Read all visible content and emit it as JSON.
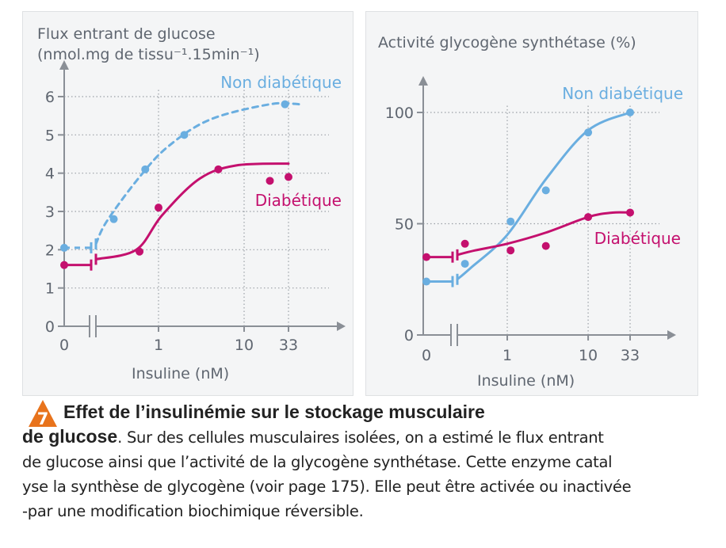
{
  "charts": [
    {
      "id": "left",
      "ylabel_line1": "Flux entrant de glucose",
      "ylabel_line2": "(nmol.mg de tissu⁻¹.15min⁻¹)",
      "xlabel": "Insuline (nM)",
      "x_ticks": [
        "0",
        "1",
        "10",
        "33"
      ],
      "y_ticks": [
        "0",
        "1",
        "2",
        "3",
        "4",
        "5",
        "6"
      ],
      "series_labels": [
        "Non diabétique",
        "Diabétique"
      ]
    },
    {
      "id": "right",
      "ylabel_line1": "Activité glycogène synthétase (%)",
      "xlabel": "Insuline (nM)",
      "x_ticks": [
        "0",
        "1",
        "10",
        "33"
      ],
      "y_ticks": [
        "0",
        "50",
        "100"
      ],
      "series_labels": [
        "Non diabétique",
        "Diabétique"
      ]
    }
  ],
  "chart_data": [
    {
      "type": "line",
      "xlabel": "Insuline (nM)",
      "ylabel": "Flux entrant de glucose (nmol.mg de tissu⁻¹.15min⁻¹)",
      "x_scale": "log (with break, 0 shown separately)",
      "ylim": [
        0,
        6
      ],
      "grid": true,
      "series": [
        {
          "name": "Non diabétique",
          "color": "#6aaee0",
          "style": "dashed",
          "points": [
            [
              0,
              2.05
            ],
            [
              0.3,
              2.8
            ],
            [
              0.7,
              4.1
            ],
            [
              2,
              5.0
            ],
            [
              30,
              5.8
            ]
          ]
        },
        {
          "name": "Diabétique",
          "color": "#c4106e",
          "style": "solid",
          "points": [
            [
              0,
              1.6
            ],
            [
              0.6,
              1.95
            ],
            [
              1,
              3.1
            ],
            [
              5,
              4.1
            ],
            [
              20,
              3.8
            ],
            [
              33,
              3.9
            ]
          ]
        }
      ]
    },
    {
      "type": "line",
      "xlabel": "Insuline (nM)",
      "ylabel": "Activité glycogène synthétase (%)",
      "x_scale": "log (with break, 0 shown separately)",
      "ylim": [
        0,
        100
      ],
      "grid": true,
      "series": [
        {
          "name": "Non diabétique",
          "color": "#6aaee0",
          "style": "solid",
          "points": [
            [
              0,
              24
            ],
            [
              0.3,
              32
            ],
            [
              1.1,
              51
            ],
            [
              3,
              65
            ],
            [
              10,
              91
            ],
            [
              33,
              100
            ]
          ]
        },
        {
          "name": "Diabétique",
          "color": "#c4106e",
          "style": "solid",
          "points": [
            [
              0,
              35
            ],
            [
              0.3,
              41
            ],
            [
              1.1,
              38
            ],
            [
              3,
              40
            ],
            [
              10,
              53
            ],
            [
              33,
              55
            ]
          ]
        }
      ]
    }
  ],
  "caption": {
    "number": "7",
    "title_line1": "Effet de l’insulinémie sur le stockage musculaire",
    "title_line2": "de glucose",
    "body_line1": ". Sur des cellules musculaires isolées, on a estimé le flux entrant",
    "body_line2": "de glucose ainsi que l’activité de la glycogène synthétase. Cette enzyme catal",
    "body_line3": "yse la synthèse de glycogène (voir page 175). Elle peut être activée ou inactivée",
    "body_line4": "-par une modification biochimique réversible."
  },
  "colors": {
    "non_diabetic": "#6aaee0",
    "diabetic": "#c4106e",
    "axis": "#8a8f96",
    "text_axis": "#5f6670",
    "badge": "#e8731c"
  }
}
